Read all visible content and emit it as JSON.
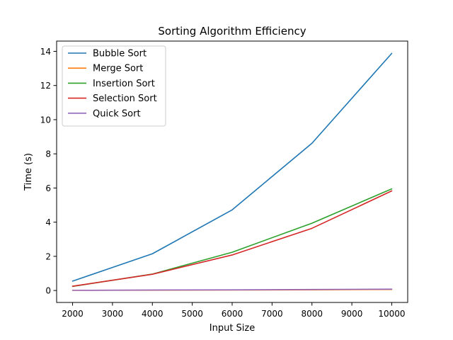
{
  "chart_data": {
    "type": "line",
    "title": "Sorting Algorithm Efficiency",
    "xlabel": "Input Size",
    "ylabel": "Time (s)",
    "x": [
      2000,
      4000,
      6000,
      8000,
      10000
    ],
    "xlim": [
      1600,
      10400
    ],
    "ylim": [
      -0.7,
      14.6
    ],
    "xticks": [
      2000,
      3000,
      4000,
      5000,
      6000,
      7000,
      8000,
      9000,
      10000
    ],
    "yticks": [
      0,
      2,
      4,
      6,
      8,
      10,
      12,
      14
    ],
    "grid": false,
    "legend_position": "top-left",
    "series": [
      {
        "name": "Bubble Sort",
        "color": "#1f77b4",
        "values": [
          0.55,
          2.15,
          4.72,
          8.62,
          13.88
        ]
      },
      {
        "name": "Merge Sort",
        "color": "#ff7f0e",
        "values": [
          0.01,
          0.02,
          0.03,
          0.04,
          0.06
        ]
      },
      {
        "name": "Insertion Sort",
        "color": "#2ca02c",
        "values": [
          0.24,
          0.96,
          2.24,
          3.94,
          5.95
        ]
      },
      {
        "name": "Selection Sort",
        "color": "#d62728",
        "values": [
          0.25,
          0.95,
          2.08,
          3.64,
          5.83
        ]
      },
      {
        "name": "Quick Sort",
        "color": "#9467bd",
        "values": [
          0.01,
          0.03,
          0.04,
          0.06,
          0.08
        ]
      }
    ]
  }
}
